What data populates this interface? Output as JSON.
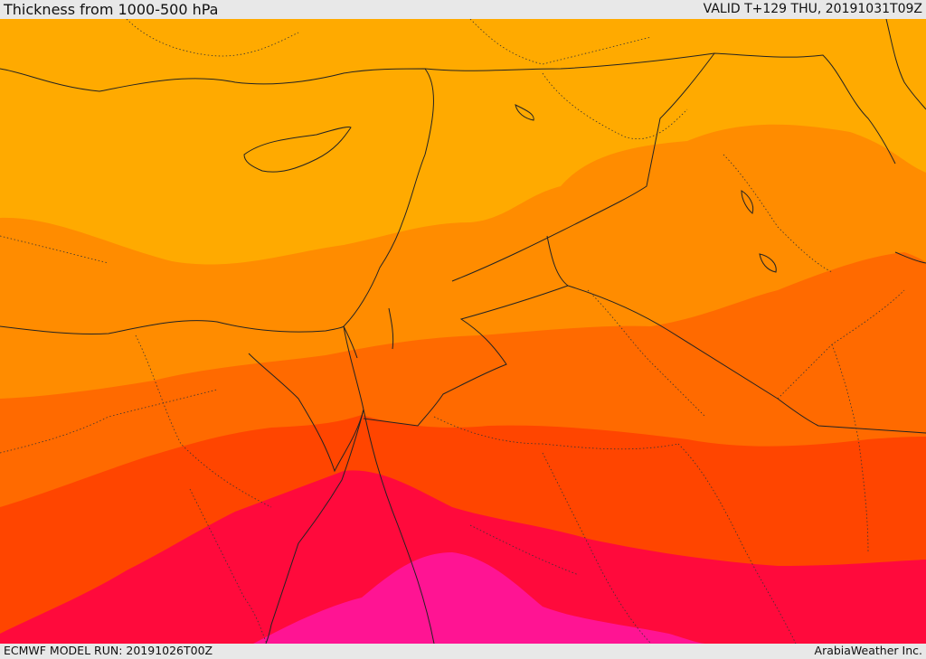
{
  "header": {
    "title": "Thickness from 1000-500 hPa",
    "valid": "VALID T+129 THU, 20191031T09Z"
  },
  "footer": {
    "model_run": "ECMWF MODEL RUN: 20191026T00Z",
    "credit": "ArabiaWeather Inc."
  },
  "map": {
    "field": "1000-500 hPa thickness",
    "colors": {
      "band_1": "#ffaa00",
      "band_2": "#ff8c00",
      "band_3": "#ff6a00",
      "band_4": "#ff4500",
      "band_5": "#ff0a3c",
      "band_6": "#ff1493",
      "land_borders": "#222222",
      "internal_borders": "#333333"
    }
  }
}
